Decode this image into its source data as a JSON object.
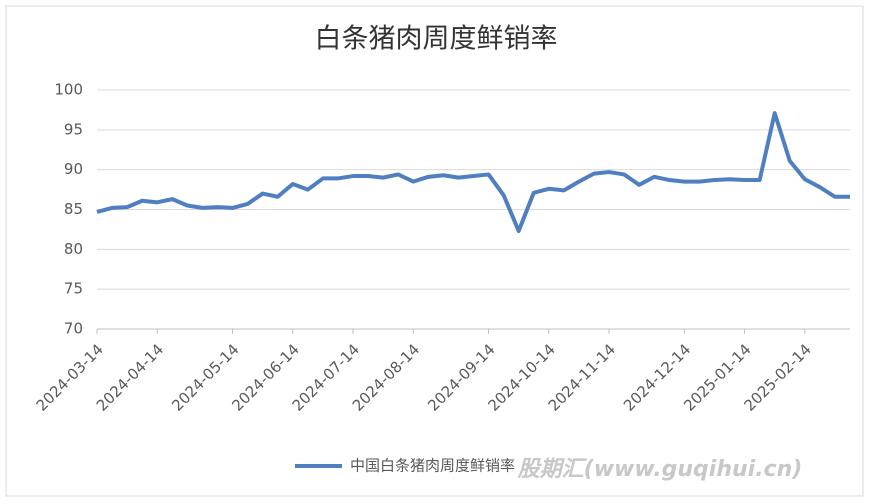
{
  "chart_data": {
    "type": "line",
    "title": "白条猪肉周度鲜销率",
    "categories": [
      "2024-03-14",
      null,
      null,
      null,
      "2024-04-14",
      null,
      null,
      null,
      null,
      "2024-05-14",
      null,
      null,
      null,
      "2024-06-14",
      null,
      null,
      null,
      "2024-07-14",
      null,
      null,
      null,
      "2024-08-14",
      null,
      null,
      null,
      null,
      "2024-09-14",
      null,
      null,
      null,
      "2024-10-14",
      null,
      null,
      null,
      "2024-11-14",
      null,
      null,
      null,
      null,
      "2024-12-14",
      null,
      null,
      null,
      "2025-01-14",
      null,
      null,
      null,
      "2025-02-14",
      null,
      null,
      null
    ],
    "series": [
      {
        "name": "中国白条猪肉周度鲜销率",
        "color": "#4f7fc0",
        "values": [
          84.7,
          85.2,
          85.3,
          86.1,
          85.9,
          86.3,
          85.5,
          85.2,
          85.3,
          85.2,
          85.7,
          87.0,
          86.6,
          88.2,
          87.5,
          88.9,
          88.9,
          89.2,
          89.2,
          89.0,
          89.4,
          88.5,
          89.1,
          89.3,
          89.0,
          89.2,
          89.4,
          86.8,
          82.3,
          87.1,
          87.6,
          87.4,
          88.5,
          89.5,
          89.7,
          89.4,
          88.1,
          89.1,
          88.7,
          88.5,
          88.5,
          88.7,
          88.8,
          88.7,
          88.7,
          97.1,
          91.1,
          88.8,
          87.8,
          86.6,
          86.6
        ]
      }
    ],
    "ylim": [
      70,
      100
    ],
    "yticks": [
      70,
      75,
      80,
      85,
      90,
      95,
      100
    ],
    "grid": true,
    "legend": "bottom",
    "watermark": "股期汇(www.guqihui.cn)"
  }
}
